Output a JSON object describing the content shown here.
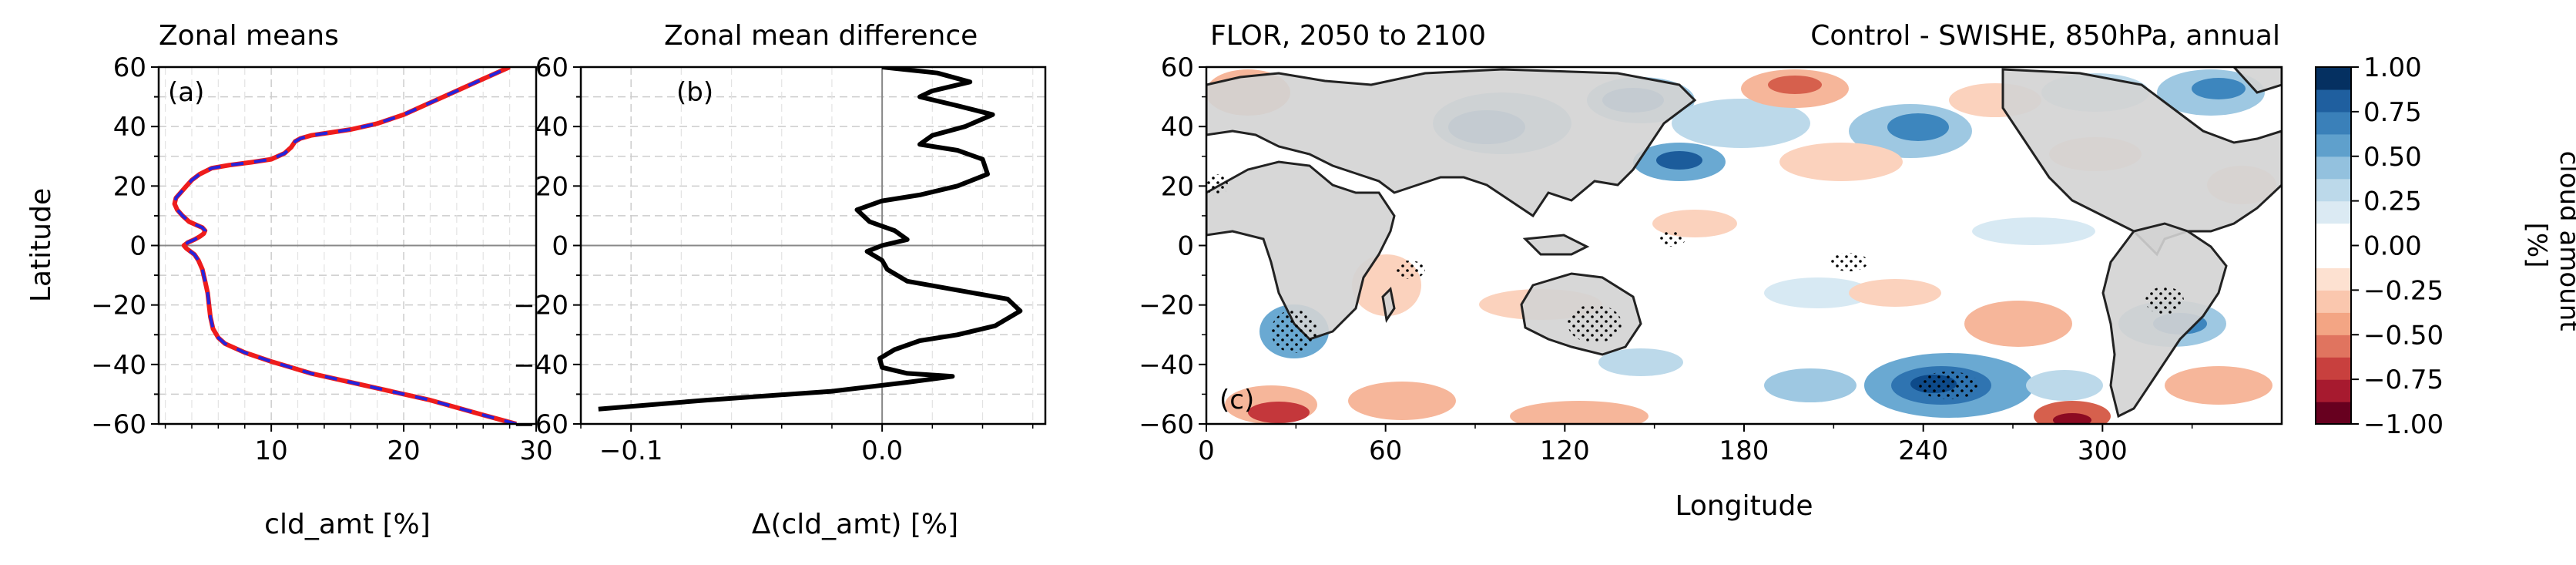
{
  "chart_data": [
    {
      "type": "line",
      "panel": "a",
      "title": "Zonal means",
      "panel_label": "(a)",
      "xlabel": "cld_amt [%]",
      "ylabel": "Latitude",
      "xlim": [
        1.5,
        30
      ],
      "ylim": [
        -60,
        60
      ],
      "xticks": [
        10,
        20,
        30
      ],
      "yticks": [
        -60,
        -40,
        -20,
        0,
        20,
        40,
        60
      ],
      "grid": true,
      "series": [
        {
          "color": "#ee1c1c",
          "points": [
            [
              28.5,
              -60
            ],
            [
              26,
              -57
            ],
            [
              22,
              -52
            ],
            [
              17,
              -47
            ],
            [
              13,
              -43
            ],
            [
              10,
              -39
            ],
            [
              8,
              -36
            ],
            [
              6.5,
              -33
            ],
            [
              6,
              -31
            ],
            [
              5.6,
              -28
            ],
            [
              5.4,
              -24
            ],
            [
              5.3,
              -20
            ],
            [
              5.2,
              -16
            ],
            [
              5.0,
              -12
            ],
            [
              4.8,
              -8
            ],
            [
              4.5,
              -5
            ],
            [
              4.2,
              -3
            ],
            [
              3.6,
              -1
            ],
            [
              3.4,
              0
            ],
            [
              3.7,
              1
            ],
            [
              4.2,
              2
            ],
            [
              4.6,
              3
            ],
            [
              4.9,
              4
            ],
            [
              5.0,
              5
            ],
            [
              4.8,
              6
            ],
            [
              4.3,
              7
            ],
            [
              3.8,
              8
            ],
            [
              3.3,
              10
            ],
            [
              2.9,
              12
            ],
            [
              2.7,
              14
            ],
            [
              2.8,
              16
            ],
            [
              3.2,
              18
            ],
            [
              3.6,
              20
            ],
            [
              4.0,
              22
            ],
            [
              4.6,
              24
            ],
            [
              5.5,
              26
            ],
            [
              6.8,
              27
            ],
            [
              8.5,
              28
            ],
            [
              10,
              29
            ],
            [
              11,
              31
            ],
            [
              11.5,
              33
            ],
            [
              11.8,
              35
            ],
            [
              12.2,
              36
            ],
            [
              13,
              37
            ],
            [
              14.5,
              38
            ],
            [
              16,
              39
            ],
            [
              18,
              41
            ],
            [
              20,
              44
            ],
            [
              22,
              48
            ],
            [
              24,
              52
            ],
            [
              26,
              56
            ],
            [
              27.5,
              59
            ],
            [
              28,
              60
            ]
          ]
        },
        {
          "color": "#2424dd",
          "dashed": true,
          "points": [
            [
              28.5,
              -60
            ],
            [
              26,
              -57
            ],
            [
              22,
              -52
            ],
            [
              17,
              -47
            ],
            [
              13,
              -43
            ],
            [
              10,
              -39
            ],
            [
              8,
              -36
            ],
            [
              6.5,
              -33
            ],
            [
              6,
              -31
            ],
            [
              5.6,
              -28
            ],
            [
              5.4,
              -24
            ],
            [
              5.3,
              -20
            ],
            [
              5.2,
              -16
            ],
            [
              5.0,
              -12
            ],
            [
              4.8,
              -8
            ],
            [
              4.5,
              -5
            ],
            [
              4.2,
              -3
            ],
            [
              3.6,
              -1
            ],
            [
              3.4,
              0
            ],
            [
              3.7,
              1
            ],
            [
              4.2,
              2
            ],
            [
              4.6,
              3
            ],
            [
              4.9,
              4
            ],
            [
              5.0,
              5
            ],
            [
              4.8,
              6
            ],
            [
              4.3,
              7
            ],
            [
              3.8,
              8
            ],
            [
              3.3,
              10
            ],
            [
              2.9,
              12
            ],
            [
              2.7,
              14
            ],
            [
              2.8,
              16
            ],
            [
              3.2,
              18
            ],
            [
              3.6,
              20
            ],
            [
              4.0,
              22
            ],
            [
              4.6,
              24
            ],
            [
              5.5,
              26
            ],
            [
              6.8,
              27
            ],
            [
              8.5,
              28
            ],
            [
              10,
              29
            ],
            [
              11,
              31
            ],
            [
              11.5,
              33
            ],
            [
              11.8,
              35
            ],
            [
              12.2,
              36
            ],
            [
              13,
              37
            ],
            [
              14.5,
              38
            ],
            [
              16,
              39
            ],
            [
              18,
              41
            ],
            [
              20,
              44
            ],
            [
              22,
              48
            ],
            [
              24,
              52
            ],
            [
              26,
              56
            ],
            [
              27.5,
              59
            ],
            [
              28,
              60
            ]
          ]
        }
      ]
    },
    {
      "type": "line",
      "panel": "b",
      "title": "Zonal mean difference",
      "panel_label": "(b)",
      "xlabel": "Δ(cld_amt) [%]",
      "ylabel": "",
      "xlim": [
        -0.12,
        0.065
      ],
      "ylim": [
        -60,
        60
      ],
      "xticks": [
        -0.1,
        0.0,
        0.1
      ],
      "yticks": [
        -60,
        -40,
        -20,
        0,
        20,
        40,
        60
      ],
      "grid": true,
      "series": [
        {
          "color": "#000000",
          "points": [
            [
              -0.113,
              -55
            ],
            [
              -0.07,
              -52
            ],
            [
              -0.02,
              -49
            ],
            [
              0.01,
              -46
            ],
            [
              0.028,
              -44
            ],
            [
              0.01,
              -43
            ],
            [
              0.0,
              -41
            ],
            [
              -0.001,
              -38
            ],
            [
              0.005,
              -35
            ],
            [
              0.015,
              -32
            ],
            [
              0.03,
              -30
            ],
            [
              0.045,
              -27
            ],
            [
              0.055,
              -22
            ],
            [
              0.05,
              -18
            ],
            [
              0.03,
              -15
            ],
            [
              0.01,
              -12
            ],
            [
              0.002,
              -8
            ],
            [
              0.0,
              -5
            ],
            [
              -0.006,
              -2
            ],
            [
              0.0,
              0
            ],
            [
              0.01,
              2
            ],
            [
              0.005,
              5
            ],
            [
              -0.005,
              8
            ],
            [
              -0.01,
              12
            ],
            [
              0.0,
              15
            ],
            [
              0.015,
              17
            ],
            [
              0.03,
              20
            ],
            [
              0.042,
              24
            ],
            [
              0.04,
              29
            ],
            [
              0.03,
              32
            ],
            [
              0.015,
              34
            ],
            [
              0.02,
              37
            ],
            [
              0.033,
              40
            ],
            [
              0.044,
              44
            ],
            [
              0.03,
              47
            ],
            [
              0.015,
              50
            ],
            [
              0.02,
              52
            ],
            [
              0.035,
              55
            ],
            [
              0.022,
              58
            ],
            [
              0.0,
              60
            ]
          ]
        }
      ]
    },
    {
      "type": "heatmap",
      "panel": "c",
      "title_left": "FLOR, 2050 to 2100",
      "title_right": "Control - SWISHE, 850hPa, annual",
      "panel_label": "(c)",
      "xlabel": "Longitude",
      "ylabel": "",
      "xlim": [
        0,
        360
      ],
      "ylim": [
        -60,
        60
      ],
      "xticks": [
        0,
        60,
        120,
        180,
        240,
        300
      ],
      "yticks": [
        -60,
        -40,
        -20,
        0,
        20,
        40,
        60
      ],
      "colorbar": {
        "label": "cloud amount\n[%]",
        "range": [
          -1,
          1
        ],
        "ticks": [
          "1.00",
          "0.75",
          "0.50",
          "0.25",
          "0.00",
          "−0.25",
          "−0.50",
          "−0.75",
          "−1.00"
        ],
        "colormap": "RdBu",
        "levels": 16
      }
    }
  ]
}
